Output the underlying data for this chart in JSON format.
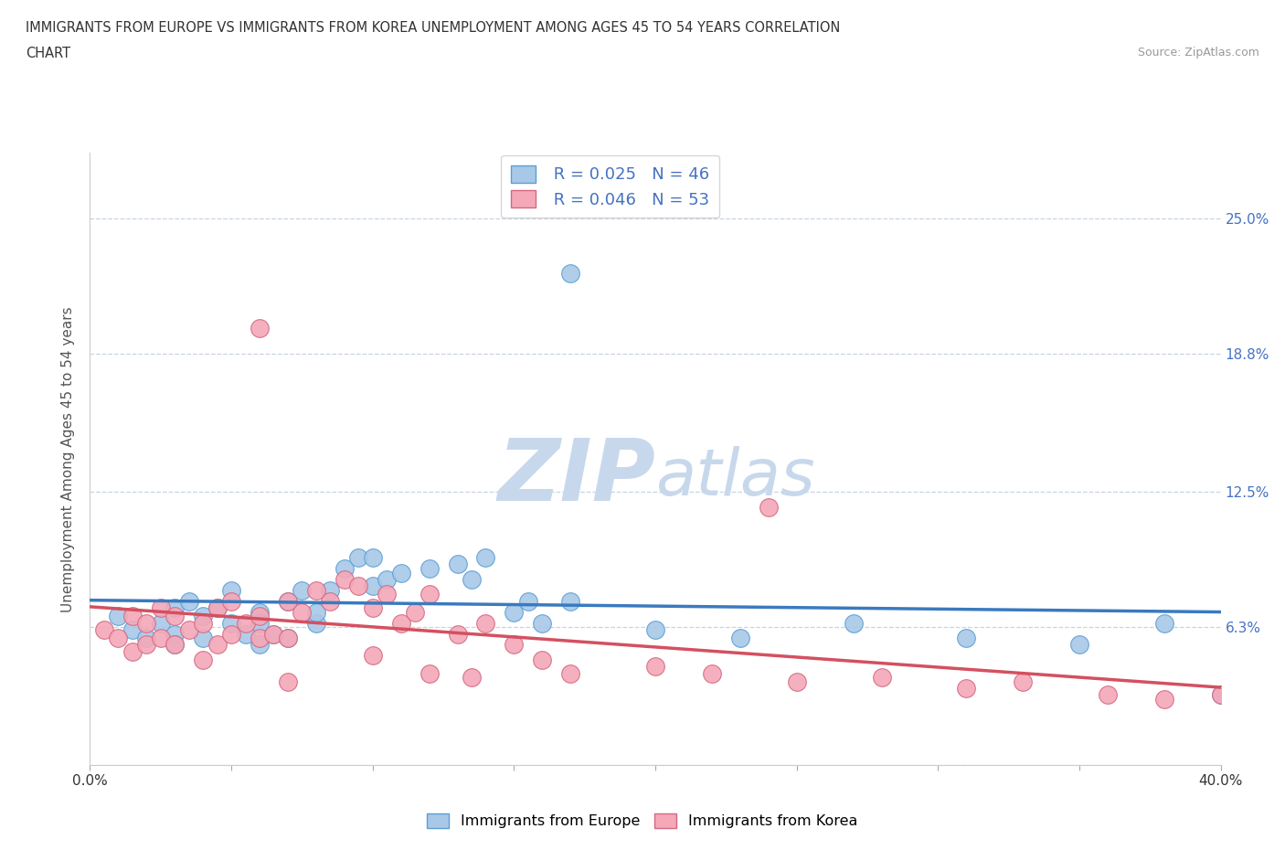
{
  "title_line1": "IMMIGRANTS FROM EUROPE VS IMMIGRANTS FROM KOREA UNEMPLOYMENT AMONG AGES 45 TO 54 YEARS CORRELATION",
  "title_line2": "CHART",
  "source": "Source: ZipAtlas.com",
  "ylabel": "Unemployment Among Ages 45 to 54 years",
  "xlim": [
    0.0,
    0.4
  ],
  "ylim": [
    0.0,
    0.28
  ],
  "xticks": [
    0.0,
    0.05,
    0.1,
    0.15,
    0.2,
    0.25,
    0.3,
    0.35,
    0.4
  ],
  "xticklabels": [
    "0.0%",
    "",
    "",
    "",
    "",
    "",
    "",
    "",
    "40.0%"
  ],
  "ytick_positions": [
    0.0,
    0.063,
    0.125,
    0.188,
    0.25
  ],
  "ytick_labels": [
    "",
    "6.3%",
    "12.5%",
    "18.8%",
    "25.0%"
  ],
  "europe_color": "#a8c8e8",
  "europe_edge_color": "#5a9fd4",
  "korea_color": "#f4a8b8",
  "korea_edge_color": "#d46880",
  "europe_R": "0.025",
  "europe_N": "46",
  "korea_R": "0.046",
  "korea_N": "53",
  "trendline_europe_color": "#3a7abf",
  "trendline_korea_color": "#d45060",
  "watermark_zip": "ZIP",
  "watermark_atlas": "atlas",
  "watermark_color": "#c8d8ec",
  "background_color": "#ffffff",
  "grid_color": "#c8d4e4",
  "europe_scatter_x": [
    0.01,
    0.015,
    0.02,
    0.025,
    0.03,
    0.03,
    0.03,
    0.035,
    0.04,
    0.04,
    0.045,
    0.05,
    0.05,
    0.055,
    0.06,
    0.06,
    0.06,
    0.065,
    0.07,
    0.07,
    0.075,
    0.08,
    0.08,
    0.085,
    0.09,
    0.095,
    0.1,
    0.1,
    0.105,
    0.11,
    0.12,
    0.13,
    0.135,
    0.14,
    0.15,
    0.155,
    0.16,
    0.17,
    0.2,
    0.23,
    0.27,
    0.31,
    0.35,
    0.38,
    0.4,
    0.17
  ],
  "europe_scatter_y": [
    0.068,
    0.062,
    0.058,
    0.065,
    0.072,
    0.06,
    0.055,
    0.075,
    0.068,
    0.058,
    0.072,
    0.065,
    0.08,
    0.06,
    0.07,
    0.065,
    0.055,
    0.06,
    0.075,
    0.058,
    0.08,
    0.065,
    0.07,
    0.08,
    0.09,
    0.095,
    0.082,
    0.095,
    0.085,
    0.088,
    0.09,
    0.092,
    0.085,
    0.095,
    0.07,
    0.075,
    0.065,
    0.075,
    0.062,
    0.058,
    0.065,
    0.058,
    0.055,
    0.065,
    0.032,
    0.225
  ],
  "korea_scatter_x": [
    0.005,
    0.01,
    0.015,
    0.015,
    0.02,
    0.02,
    0.025,
    0.025,
    0.03,
    0.03,
    0.035,
    0.04,
    0.04,
    0.045,
    0.045,
    0.05,
    0.05,
    0.055,
    0.06,
    0.06,
    0.065,
    0.07,
    0.07,
    0.075,
    0.08,
    0.085,
    0.09,
    0.095,
    0.1,
    0.105,
    0.11,
    0.115,
    0.12,
    0.13,
    0.14,
    0.15,
    0.16,
    0.17,
    0.2,
    0.22,
    0.25,
    0.28,
    0.31,
    0.33,
    0.36,
    0.38,
    0.4,
    0.24,
    0.1,
    0.12,
    0.135,
    0.07,
    0.06
  ],
  "korea_scatter_y": [
    0.062,
    0.058,
    0.068,
    0.052,
    0.065,
    0.055,
    0.072,
    0.058,
    0.068,
    0.055,
    0.062,
    0.065,
    0.048,
    0.055,
    0.072,
    0.06,
    0.075,
    0.065,
    0.058,
    0.068,
    0.06,
    0.075,
    0.058,
    0.07,
    0.08,
    0.075,
    0.085,
    0.082,
    0.072,
    0.078,
    0.065,
    0.07,
    0.078,
    0.06,
    0.065,
    0.055,
    0.048,
    0.042,
    0.045,
    0.042,
    0.038,
    0.04,
    0.035,
    0.038,
    0.032,
    0.03,
    0.032,
    0.118,
    0.05,
    0.042,
    0.04,
    0.038,
    0.2
  ]
}
